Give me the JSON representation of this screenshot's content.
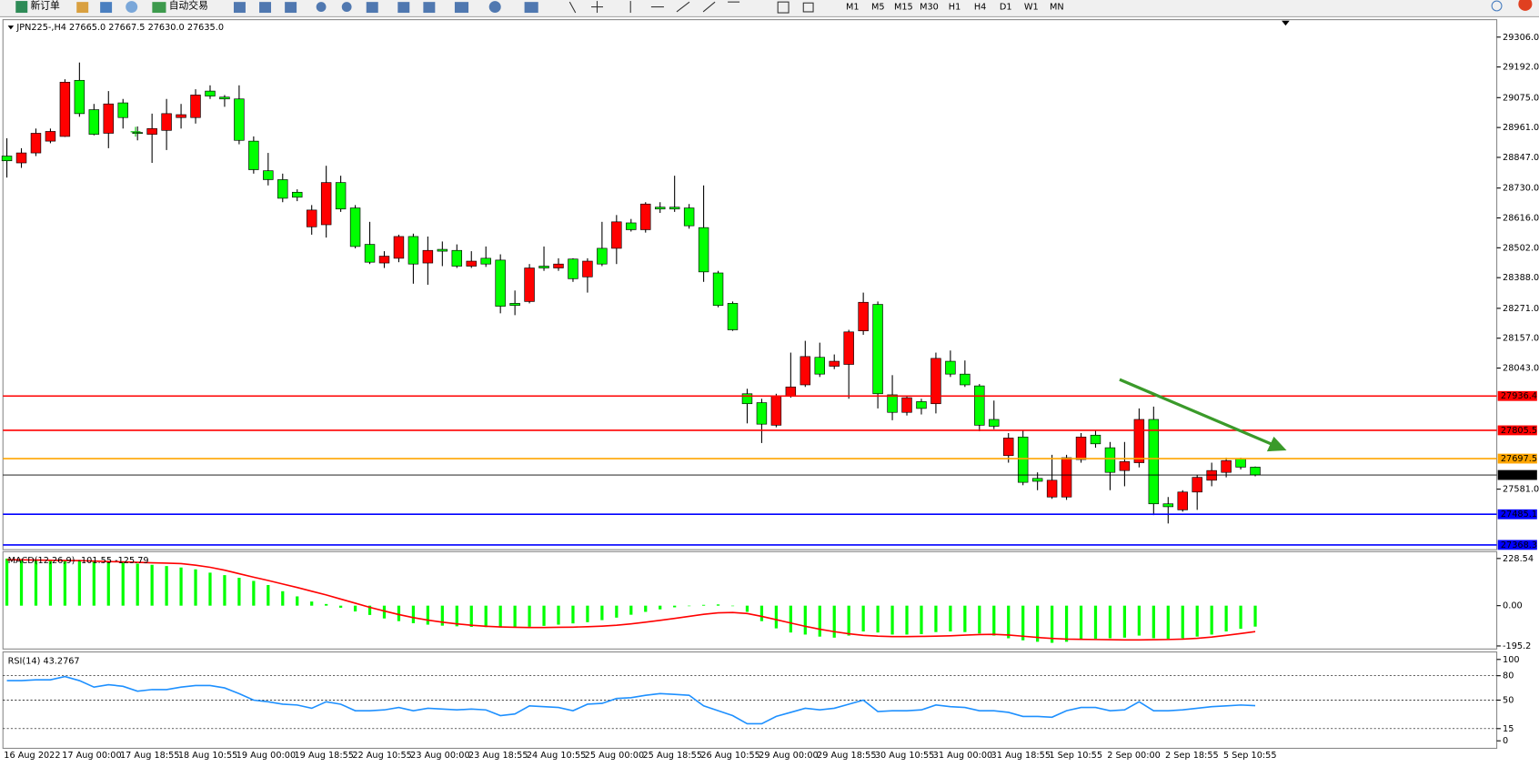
{
  "toolbar": {
    "new_order": "新订单",
    "auto_trading": "自动交易",
    "timeframes": [
      "M1",
      "M5",
      "M15",
      "M30",
      "H1",
      "H4",
      "D1",
      "W1",
      "MN"
    ]
  },
  "chart_data": [
    {
      "type": "candlestick",
      "title": "JPN225-,H4  27665.0 27667.5 27630.0 27635.0",
      "x": [
        "16 Aug 2022",
        null,
        null,
        null,
        "17 Aug 00:00",
        null,
        null,
        null,
        "17 Aug 18:55",
        null,
        null,
        null,
        "18 Aug 10:55",
        null,
        null,
        null,
        "19 Aug 00:00",
        null,
        null,
        null,
        "19 Aug 18:55",
        null,
        null,
        null,
        "22 Aug 10:55",
        null,
        null,
        null,
        "23 Aug 00:00",
        null,
        null,
        null,
        "23 Aug 18:55",
        null,
        null,
        null,
        "24 Aug 10:55",
        null,
        null,
        null,
        "25 Aug 00:00",
        null,
        null,
        null,
        "25 Aug 18:55",
        null,
        null,
        null,
        "26 Aug 10:55",
        null,
        null,
        null,
        "29 Aug 00:00",
        null,
        null,
        null,
        "29 Aug 18:55",
        null,
        null,
        null,
        "30 Aug 10:55",
        null,
        null,
        null,
        "31 Aug 00:00",
        null,
        null,
        null,
        "31 Aug 18:55",
        null,
        null,
        null,
        "1 Sep 10:55",
        null,
        null,
        null,
        "2 Sep 00:00",
        null,
        null,
        null,
        "2 Sep 18:55",
        null,
        null,
        null,
        "5 Sep 10:55",
        null,
        null
      ],
      "open": [
        28852,
        28826,
        28864,
        28909,
        28927,
        29141,
        29029,
        28939,
        29055,
        28942,
        28935,
        28950,
        28999,
        28999,
        29100,
        29077,
        29070,
        28909,
        28796,
        28762,
        28714,
        28582,
        28590,
        28751,
        28654,
        28515,
        28444,
        28462,
        28545,
        28444,
        28496,
        28492,
        28432,
        28462,
        28455,
        28290,
        28297,
        28432,
        28425,
        28459,
        28391,
        28500,
        28500,
        28597,
        28571,
        28657,
        28657,
        28654,
        28579,
        28406,
        28290,
        27945,
        27911,
        27825,
        27937,
        27979,
        28084,
        28050,
        28057,
        28185,
        28286,
        27941,
        27874,
        27915,
        27907,
        28069,
        28020,
        27975,
        27847,
        27709,
        27780,
        27622,
        27551,
        27551,
        27694,
        27787,
        27739,
        27652,
        27682,
        27847,
        27525,
        27502,
        27570,
        27615,
        27645,
        27697,
        27665
      ],
      "high": [
        28920,
        28882,
        28957,
        28957,
        29145,
        29209,
        29051,
        29100,
        29070,
        28965,
        29014,
        29070,
        29051,
        29107,
        29122,
        29085,
        29122,
        28927,
        28864,
        28785,
        28725,
        28665,
        28815,
        28777,
        28665,
        28601,
        28489,
        28552,
        28556,
        28545,
        28526,
        28515,
        28489,
        28507,
        28477,
        28339,
        28440,
        28507,
        28462,
        28462,
        28462,
        28601,
        28627,
        28612,
        28676,
        28676,
        28777,
        28669,
        28740,
        28414,
        28297,
        27964,
        27926,
        27945,
        28102,
        28147,
        28140,
        28095,
        28189,
        28331,
        28297,
        28016,
        27937,
        27926,
        28102,
        28110,
        28072,
        27982,
        27919,
        27795,
        27806,
        27645,
        27712,
        27712,
        27795,
        27806,
        27761,
        27761,
        27889,
        27896,
        27551,
        27577,
        27634,
        27682,
        27701,
        27701,
        27667.5
      ],
      "low": [
        28770,
        28807,
        28852,
        28901,
        28925,
        29002,
        28931,
        28882,
        28957,
        28912,
        28826,
        28875,
        28957,
        28976,
        29070,
        29040,
        28897,
        28785,
        28740,
        28676,
        28680,
        28552,
        28541,
        28639,
        28500,
        28440,
        28425,
        28447,
        28365,
        28361,
        28432,
        28425,
        28425,
        28429,
        28252,
        28245,
        28290,
        28414,
        28414,
        28372,
        28331,
        28432,
        28440,
        28564,
        28560,
        28635,
        28639,
        28575,
        28372,
        28275,
        28185,
        27832,
        27757,
        27817,
        27930,
        27971,
        28009,
        28039,
        27926,
        28170,
        27889,
        27844,
        27862,
        27866,
        27870,
        28009,
        27971,
        27802,
        27810,
        27682,
        27596,
        27577,
        27544,
        27540,
        27682,
        27739,
        27577,
        27592,
        27664,
        27482,
        27450,
        27495,
        27502,
        27592,
        27626,
        27656,
        27630
      ],
      "close": [
        28834,
        28864,
        28939,
        28946,
        29134,
        29014,
        28935,
        29051,
        28999,
        28939,
        28957,
        29014,
        29010,
        29085,
        29081,
        29070,
        28912,
        28800,
        28762,
        28691,
        28695,
        28646,
        28751,
        28650,
        28507,
        28447,
        28470,
        28545,
        28440,
        28492,
        28489,
        28432,
        28451,
        28440,
        28279,
        28282,
        28425,
        28425,
        28440,
        28384,
        28451,
        28440,
        28601,
        28571,
        28669,
        28650,
        28650,
        28586,
        28410,
        28282,
        28189,
        27907,
        27829,
        27937,
        27971,
        28087,
        28020,
        28069,
        28181,
        28294,
        27945,
        27874,
        27930,
        27889,
        28080,
        28020,
        27979,
        27825,
        27821,
        27776,
        27607,
        27611,
        27615,
        27701,
        27780,
        27754,
        27645,
        27686,
        27847,
        27525,
        27514,
        27570,
        27626,
        27652,
        27690,
        27665,
        27635
      ],
      "up_color": "#ff0000",
      "down_color": "#00ff00",
      "ylim": [
        27350,
        29365
      ],
      "yticks": [
        {
          "value": 29306,
          "label": "29306.0"
        },
        {
          "value": 29192,
          "label": "29192.0"
        },
        {
          "value": 29075,
          "label": "29075.0"
        },
        {
          "value": 28961,
          "label": "28961.0"
        },
        {
          "value": 28847,
          "label": "28847.0"
        },
        {
          "value": 28730,
          "label": "28730.0"
        },
        {
          "value": 28616,
          "label": "28616.0"
        },
        {
          "value": 28502,
          "label": "28502.0"
        },
        {
          "value": 28388,
          "label": "28388.0"
        },
        {
          "value": 28271,
          "label": "28271.0"
        },
        {
          "value": 28157,
          "label": "28157.0"
        },
        {
          "value": 28043,
          "label": "28043.0"
        },
        {
          "value": 27581,
          "label": "27581.0"
        }
      ],
      "levels": [
        {
          "value": 27936.4,
          "label": "27936.4",
          "color": "#ff0000"
        },
        {
          "value": 27805.5,
          "label": "27805.5",
          "color": "#ff0000"
        },
        {
          "value": 27697.5,
          "label": "27697.5",
          "color": "#ffa500"
        },
        {
          "value": 27635,
          "label": "27635.0",
          "color": "#000000"
        },
        {
          "value": 27485.1,
          "label": "27485.1",
          "color": "#0000ff"
        },
        {
          "value": 27368.3,
          "label": "27368.3",
          "color": "#0000ff"
        }
      ]
    },
    {
      "type": "macd",
      "title": "MACD(12,26,9) -101.55 -125.79",
      "histogram": {
        "color": "#00ff00",
        "values": [
          228,
          226,
          224,
          222,
          220,
          218,
          215,
          212,
          208,
          204,
          198,
          192,
          185,
          176,
          160,
          148,
          135,
          120,
          100,
          70,
          45,
          20,
          8,
          -10,
          -28,
          -45,
          -62,
          -75,
          -85,
          -92,
          -97,
          -100,
          -103,
          -104,
          -106,
          -105,
          -102,
          -98,
          -92,
          -86,
          -80,
          -70,
          -58,
          -44,
          -30,
          -18,
          -8,
          0,
          4,
          6,
          0,
          -30,
          -75,
          -110,
          -130,
          -140,
          -150,
          -155,
          -145,
          -125,
          -130,
          -140,
          -140,
          -138,
          -128,
          -125,
          -128,
          -135,
          -145,
          -158,
          -168,
          -175,
          -180,
          -175,
          -165,
          -160,
          -158,
          -155,
          -145,
          -158,
          -160,
          -158,
          -150,
          -140,
          -125,
          -112,
          -101.55
        ]
      },
      "signal": {
        "color": "#ff0000",
        "values": [
          222,
          222,
          221,
          220,
          219,
          218,
          216,
          214,
          212,
          210,
          208,
          206,
          204,
          196,
          186,
          172,
          155,
          138,
          122,
          105,
          88,
          70,
          52,
          32,
          12,
          -8,
          -26,
          -43,
          -58,
          -70,
          -80,
          -88,
          -95,
          -100,
          -103,
          -105,
          -106,
          -106,
          -105,
          -104,
          -102,
          -99,
          -95,
          -88,
          -80,
          -71,
          -62,
          -52,
          -42,
          -35,
          -33,
          -38,
          -52,
          -68,
          -84,
          -100,
          -114,
          -126,
          -136,
          -144,
          -148,
          -150,
          -150,
          -149,
          -148,
          -146,
          -143,
          -140,
          -139,
          -142,
          -148,
          -154,
          -159,
          -162,
          -163,
          -164,
          -165,
          -166,
          -166,
          -165,
          -164,
          -162,
          -158,
          -152,
          -144,
          -135,
          -125.79
        ]
      },
      "ylim": [
        -210,
        257
      ],
      "yticks": [
        228.54,
        {
          "value": 0,
          "label": "0.00"
        },
        -195.2
      ]
    },
    {
      "type": "line",
      "title": "RSI(14) 43.2767",
      "color": "#1e90ff",
      "values": [
        74,
        74,
        75,
        75,
        79,
        74,
        66,
        69,
        67,
        61,
        63,
        63,
        66,
        68,
        68,
        65,
        58,
        50,
        48,
        45,
        44,
        40,
        48,
        45,
        37,
        37,
        38,
        41,
        37,
        40,
        39,
        38,
        39,
        38,
        31,
        33,
        43,
        42,
        41,
        37,
        45,
        46,
        52,
        53,
        56,
        58,
        57,
        56,
        43,
        37,
        31,
        21,
        21,
        30,
        35,
        40,
        38,
        40,
        45,
        50,
        36,
        37,
        37,
        38,
        44,
        42,
        41,
        37,
        37,
        35,
        30,
        30,
        29,
        37,
        41,
        41,
        37,
        38,
        48,
        37,
        37,
        38,
        40,
        42,
        43,
        44,
        43.2767
      ],
      "ylim": [
        -8,
        108
      ],
      "yticks": [
        100,
        80,
        50,
        15,
        0
      ],
      "levels": [
        80,
        50,
        15
      ]
    }
  ]
}
